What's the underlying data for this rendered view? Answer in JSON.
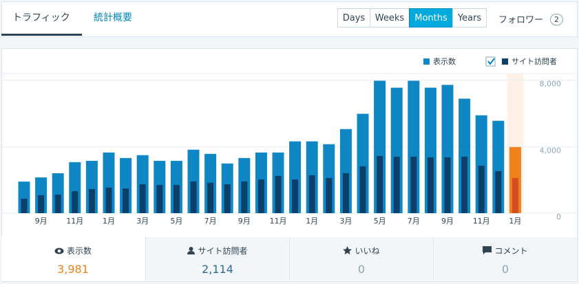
{
  "tabs": [
    "トラフィック",
    "統計概要"
  ],
  "periods": [
    "Days",
    "Weeks",
    "Months",
    "Years"
  ],
  "selected_period": 2,
  "followers": {
    "label": "フォロワー",
    "count": "2"
  },
  "chart_data": {
    "type": "bar",
    "categories": [
      null,
      "9月",
      null,
      "11月",
      null,
      "1月",
      null,
      "3月",
      null,
      "5月",
      null,
      "7月",
      null,
      "9月",
      null,
      "11月",
      null,
      "1月",
      null,
      "3月",
      null,
      "5月",
      null,
      "7月",
      null,
      "9月",
      null,
      "11月",
      null,
      "1月"
    ],
    "series": [
      {
        "name": "表示数",
        "color": "#0f87c5",
        "highlight_color": "#f0821e",
        "values": [
          1900,
          2150,
          2400,
          3070,
          3150,
          3650,
          3320,
          3490,
          3150,
          3150,
          3820,
          3570,
          2990,
          3320,
          3650,
          3650,
          4320,
          4320,
          4150,
          5060,
          5980,
          7970,
          7550,
          7970,
          7550,
          7720,
          6890,
          5890,
          5560,
          3981
        ]
      },
      {
        "name": "サイト訪問者",
        "color": "#0d3f6b",
        "highlight_color": "#d54e21",
        "values": [
          870,
          1080,
          1120,
          1330,
          1450,
          1540,
          1490,
          1740,
          1700,
          1700,
          1910,
          1830,
          1740,
          1910,
          2030,
          2240,
          2030,
          2280,
          2120,
          2410,
          2820,
          3440,
          3400,
          3400,
          3360,
          3360,
          3400,
          2860,
          2530,
          2114
        ]
      }
    ],
    "selected_index": 29,
    "ylim": [
      0,
      8400
    ],
    "yticks": [
      0,
      {
        "value": 4000,
        "label": "4,000"
      },
      {
        "value": 8000,
        "label": "8,000"
      }
    ],
    "grid": true
  },
  "summary": [
    {
      "label": "表示数",
      "value": "3,981"
    },
    {
      "label": "サイト訪問者",
      "value": "2,114"
    },
    {
      "label": "いいね",
      "value": "0"
    },
    {
      "label": "コメント",
      "value": "0"
    }
  ]
}
